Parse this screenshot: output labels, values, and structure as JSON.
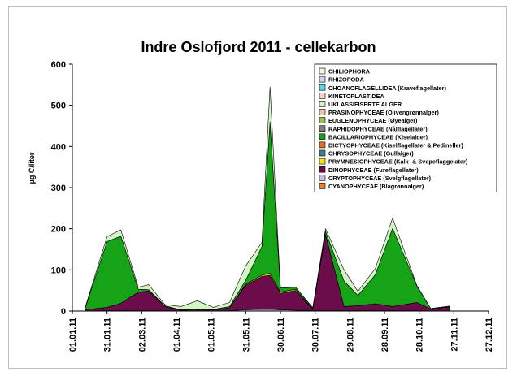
{
  "chart_data": {
    "type": "area",
    "stacked": true,
    "title": "Indre Oslofjord 2011 - cellekarbon",
    "ylabel": "µg C/liter",
    "xlabel": "",
    "ylim": [
      0,
      600
    ],
    "yticks": [
      0,
      100,
      200,
      300,
      400,
      500,
      600
    ],
    "xticks": [
      "01.01.11",
      "31.01.11",
      "02.03.11",
      "01.04.11",
      "01.05.11",
      "31.05.11",
      "30.06.11",
      "30.07.11",
      "29.08.11",
      "28.09.11",
      "28.10.11",
      "27.11.11",
      "27.12.11"
    ],
    "xtick_days": [
      0,
      30,
      60,
      90,
      120,
      150,
      180,
      210,
      240,
      270,
      300,
      330,
      360
    ],
    "x_dates": [
      "12.01.11",
      "31.01.11",
      "12.02.11",
      "27.02.11",
      "08.03.11",
      "22.03.11",
      "05.04.11",
      "19.04.11",
      "03.05.11",
      "17.05.11",
      "31.05.11",
      "14.06.11",
      "21.06.11",
      "30.06.11",
      "13.07.11",
      "28.07.11",
      "08.08.11",
      "24.08.11",
      "05.09.11",
      "20.09.11",
      "05.10.11",
      "26.10.11",
      "07.11.11",
      "23.11.11"
    ],
    "x_days": [
      11,
      30,
      42,
      57,
      66,
      80,
      94,
      108,
      122,
      136,
      150,
      164,
      171,
      180,
      193,
      208,
      219,
      235,
      247,
      262,
      277,
      298,
      310,
      326
    ],
    "legend": "top-right",
    "series": [
      {
        "name": "CYANOPHYCEAE (Blågrønnalger)",
        "color": "#f07f2a",
        "values": [
          0,
          0,
          0,
          0,
          0,
          0,
          0,
          0,
          0,
          0,
          0,
          0,
          0,
          0,
          0,
          0,
          0,
          0,
          0,
          0,
          0,
          0,
          0,
          0
        ]
      },
      {
        "name": "CRYPTOPHYCEAE (Svelgflagellater)",
        "color": "#c6c3e2",
        "values": [
          0,
          1,
          1,
          1,
          1,
          1,
          0,
          0,
          0,
          1,
          3,
          4,
          4,
          3,
          2,
          1,
          1,
          1,
          1,
          1,
          1,
          1,
          0,
          0
        ]
      },
      {
        "name": "DINOPHYCEAE (Fureflagellater)",
        "color": "#6b0d4a",
        "values": [
          3,
          8,
          18,
          45,
          48,
          10,
          2,
          3,
          3,
          7,
          60,
          80,
          83,
          40,
          48,
          3,
          185,
          10,
          12,
          17,
          10,
          20,
          5,
          10
        ]
      },
      {
        "name": "PRYMNESIOPHYCEAE (Kalk- & Svepeflaggelater)",
        "color": "#f2e21b",
        "values": [
          0,
          0,
          0,
          0,
          0,
          0,
          0,
          0,
          0,
          0,
          2,
          3,
          5,
          3,
          3,
          1,
          0,
          0,
          0,
          0,
          0,
          0,
          0,
          0
        ]
      },
      {
        "name": "CHRYSOPHYCEAE (Gullalger)",
        "color": "#3f7f8f",
        "values": [
          0,
          0,
          0,
          0,
          0,
          0,
          0,
          0,
          0,
          0,
          0,
          0,
          0,
          0,
          0,
          0,
          0,
          0,
          0,
          0,
          0,
          0,
          0,
          0
        ]
      },
      {
        "name": "DICTYOPHYCEAE (Kiselflagellater & Pedineller)",
        "color": "#e36f2c",
        "values": [
          0,
          0,
          0,
          0,
          0,
          0,
          0,
          0,
          0,
          0,
          0,
          0,
          0,
          0,
          0,
          0,
          0,
          0,
          0,
          0,
          0,
          0,
          0,
          0
        ]
      },
      {
        "name": "BACILLARIOPHYCEAE (Kiselalger)",
        "color": "#17a317",
        "values": [
          3,
          160,
          163,
          7,
          3,
          2,
          1,
          2,
          1,
          3,
          10,
          70,
          368,
          10,
          5,
          3,
          8,
          62,
          25,
          70,
          190,
          40,
          1,
          2
        ]
      },
      {
        "name": "RAPHIDOPHYCEAE (Nålflagellater)",
        "color": "#7f7f7f",
        "values": [
          0,
          0,
          0,
          0,
          0,
          0,
          0,
          0,
          0,
          0,
          0,
          0,
          0,
          0,
          0,
          0,
          0,
          0,
          0,
          0,
          0,
          0,
          0,
          0
        ]
      },
      {
        "name": "EUGLENOPHYCEAE (Øyealger)",
        "color": "#8fc34a",
        "values": [
          0,
          0,
          0,
          0,
          0,
          0,
          0,
          0,
          0,
          0,
          0,
          0,
          0,
          0,
          0,
          0,
          0,
          0,
          0,
          0,
          0,
          0,
          0,
          0
        ]
      },
      {
        "name": "PRASINOPHYCEAE (Olivengrønnalger)",
        "color": "#f2c3a4",
        "values": [
          0,
          0,
          0,
          0,
          0,
          0,
          0,
          0,
          0,
          0,
          0,
          0,
          0,
          0,
          0,
          0,
          0,
          0,
          0,
          0,
          0,
          0,
          0,
          0
        ]
      },
      {
        "name": "UKLASSIFISERTE ALGER",
        "color": "#d3f5c6",
        "values": [
          2,
          12,
          15,
          5,
          12,
          3,
          8,
          20,
          5,
          10,
          35,
          10,
          85,
          0,
          0,
          0,
          6,
          27,
          10,
          15,
          25,
          1,
          0,
          0
        ]
      },
      {
        "name": "KINETOPLASTIDEA",
        "color": "#f6d2cf",
        "values": [
          0,
          0,
          0,
          0,
          0,
          0,
          0,
          0,
          0,
          0,
          0,
          0,
          0,
          0,
          0,
          0,
          0,
          0,
          0,
          0,
          0,
          0,
          0,
          0
        ]
      },
      {
        "name": "CHOANOFLAGELLIDEA (Kraveflagellater)",
        "color": "#5fd6e8",
        "values": [
          0,
          0,
          0,
          0,
          0,
          0,
          0,
          0,
          0,
          0,
          0,
          0,
          0,
          0,
          0,
          0,
          0,
          0,
          0,
          0,
          0,
          0,
          0,
          0
        ]
      },
      {
        "name": "RHIZOPODA",
        "color": "#c9d6ea",
        "values": [
          0,
          0,
          0,
          0,
          0,
          0,
          0,
          0,
          0,
          0,
          0,
          0,
          0,
          0,
          0,
          0,
          0,
          0,
          0,
          0,
          0,
          0,
          0,
          0
        ]
      },
      {
        "name": "CHILIOPHORA",
        "color": "#f4f4d4",
        "values": [
          0,
          0,
          0,
          0,
          0,
          0,
          0,
          0,
          0,
          0,
          0,
          0,
          0,
          0,
          0,
          0,
          0,
          0,
          0,
          0,
          0,
          0,
          0,
          0
        ]
      }
    ]
  }
}
